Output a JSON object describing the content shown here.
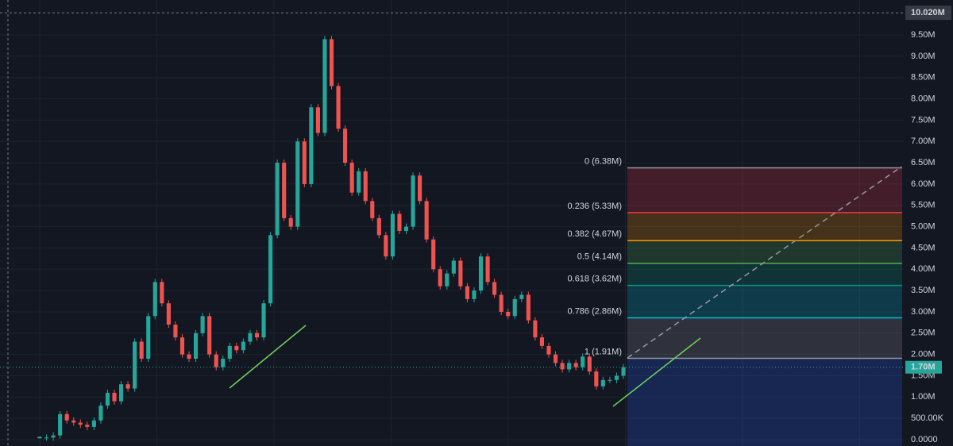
{
  "chart_data": {
    "type": "candlestick",
    "values": [
      0.05,
      0.05,
      0.1,
      0.6,
      0.45,
      0.4,
      0.35,
      0.3,
      0.45,
      0.8,
      1.1,
      0.9,
      1.3,
      1.2,
      2.3,
      1.9,
      2.9,
      3.7,
      3.2,
      2.7,
      2.4,
      2.0,
      1.9,
      2.5,
      2.9,
      2.0,
      1.7,
      1.9,
      2.2,
      2.1,
      2.3,
      2.5,
      2.4,
      3.2,
      4.8,
      6.5,
      5.2,
      5.0,
      7.0,
      6.0,
      7.8,
      7.2,
      9.4,
      8.3,
      7.3,
      6.5,
      5.8,
      6.3,
      5.6,
      5.2,
      4.8,
      4.3,
      5.3,
      4.9,
      5.0,
      6.2,
      5.6,
      4.7,
      4.0,
      3.6,
      3.9,
      4.2,
      3.6,
      3.3,
      3.5,
      4.3,
      3.7,
      3.4,
      3.0,
      2.9,
      3.3,
      3.4,
      2.8,
      2.4,
      2.2,
      2.0,
      1.8,
      1.65,
      1.8,
      1.7,
      1.95,
      1.6,
      1.25,
      1.4,
      1.4,
      1.5,
      1.7
    ],
    "up_color": "#26a69a",
    "down_color": "#ef5350",
    "ylim": [
      -0.149,
      10.32
    ],
    "yticks": [
      {
        "value": 0,
        "label": "0.0000"
      },
      {
        "value": 0.5,
        "label": "500.00K"
      },
      {
        "value": 1,
        "label": "1.00M"
      },
      {
        "value": 1.5,
        "label": "1.50M"
      },
      {
        "value": 2,
        "label": "2.00M"
      },
      {
        "value": 2.5,
        "label": "2.50M"
      },
      {
        "value": 3,
        "label": "3.00M"
      },
      {
        "value": 3.5,
        "label": "3.50M"
      },
      {
        "value": 4,
        "label": "4.00M"
      },
      {
        "value": 4.5,
        "label": "4.50M"
      },
      {
        "value": 5,
        "label": "5.00M"
      },
      {
        "value": 5.5,
        "label": "5.50M"
      },
      {
        "value": 6,
        "label": "6.00M"
      },
      {
        "value": 6.5,
        "label": "6.50M"
      },
      {
        "value": 7,
        "label": "7.00M"
      },
      {
        "value": 7.5,
        "label": "7.50M"
      },
      {
        "value": 8,
        "label": "8.00M"
      },
      {
        "value": 8.5,
        "label": "8.50M"
      },
      {
        "value": 9,
        "label": "9.00M"
      },
      {
        "value": 9.5,
        "label": "9.50M"
      }
    ],
    "grid": true,
    "crosshair_price": {
      "value": 10.02,
      "label": "10.020M"
    },
    "last_price": {
      "value": 1.7,
      "label": "1.70M",
      "color": "#26a69a"
    },
    "fib_levels": [
      {
        "value": 6.38,
        "label": "0 (6.38M)",
        "color": "#9598a1"
      },
      {
        "value": 5.33,
        "label": "0.236 (5.33M)",
        "color": "#f23645"
      },
      {
        "value": 4.67,
        "label": "0.382 (4.67M)",
        "color": "#ff9800"
      },
      {
        "value": 4.14,
        "label": "0.5 (4.14M)",
        "color": "#4caf50"
      },
      {
        "value": 3.62,
        "label": "0.618 (3.62M)",
        "color": "#089981"
      },
      {
        "value": 2.86,
        "label": "0.786 (2.86M)",
        "color": "#00bcd4"
      },
      {
        "value": 1.91,
        "label": "1 (1.91M)",
        "color": "#9598a1"
      }
    ],
    "fib_lower_fill": "#2962ff"
  }
}
